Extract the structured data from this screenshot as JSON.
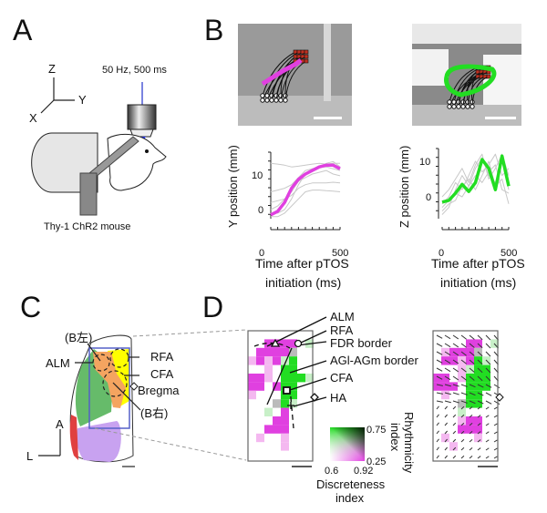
{
  "panels": {
    "A": {
      "letter": "A",
      "stim_label": "50 Hz, 500 ms",
      "axes": {
        "z": "Z",
        "y": "Y",
        "x": "X"
      },
      "caption": "Thy-1 ChR2 mouse"
    },
    "B": {
      "letter": "B",
      "left_plot": {
        "ylabel": "Y position (mm)",
        "xlabel_1": "Time after pTOS",
        "xlabel_2": "initiation (ms)",
        "xtick_0": "0",
        "xtick_500": "500",
        "ytick_0": "0",
        "ytick_10": "10"
      },
      "right_plot": {
        "ylabel": "Z position (mm)",
        "xlabel_1": "Time after pTOS",
        "xlabel_2": "initiation (ms)",
        "xtick_0": "0",
        "xtick_500": "500",
        "ytick_0": "0",
        "ytick_10": "10"
      }
    },
    "C": {
      "letter": "C",
      "labels": {
        "b_left": "(B左)",
        "alm": "ALM",
        "rfa": "RFA",
        "cfa": "CFA",
        "bregma": "Bregma",
        "b_right": "(B右)",
        "a": "A",
        "l": "L"
      },
      "region_colors": {
        "alm": "#f4a460",
        "rfa": "#ffff00",
        "m1": "#66bb6a",
        "s1": "#c8a2f0",
        "red": "#e04040",
        "box": "#5560c8"
      }
    },
    "D": {
      "letter": "D",
      "labels": {
        "alm": "ALM",
        "rfa": "RFA",
        "fdr": "FDR border",
        "agl": "AGl-AGm border",
        "cfa": "CFA",
        "ha": "HA"
      },
      "colorbar": {
        "rhythm_label_1": "Rhythmicity",
        "rhythm_label_2": "index",
        "r_max": "0.75",
        "r_min": "0.25",
        "d_min": "0.6",
        "d_max": "0.92",
        "disc_label_1": "Discreteness",
        "disc_label_2": "index"
      },
      "cell_colors": {
        "m": "#e040e0",
        "p": "#f4b8f0",
        "g": "#22dd22",
        "l": "#c8f0c8",
        "x": "#bbbbbb"
      },
      "left_map": [
        "........",
        "..mmmm.l",
        ".mmmmx..",
        "pmpmlg..",
        "..p.gg..",
        "mmp.gggl",
        "mm.mgg..",
        "p...gg..",
        "...xgl..",
        "..l.m...",
        "...mm...",
        "..mmm...",
        ".p..p...",
        "....p...",
        "........"
      ],
      "right_map": [
        "........",
        "....mm.l",
        ".pmmmx..",
        ".mmpmgl.",
        "...plgg.",
        "mm.pggg.",
        "mmm.ggg.",
        ".p..gg..",
        "...xgg..",
        "...l....",
        "...pmm..",
        "...mmm..",
        ".p...p..",
        "..p.....",
        "........"
      ]
    }
  },
  "chart_data": [
    {
      "type": "line",
      "title": "",
      "xlabel": "Time after pTOS initiation (ms)",
      "ylabel": "Y position (mm)",
      "xlim": [
        0,
        500
      ],
      "ylim": [
        -3,
        15
      ],
      "x": [
        0,
        50,
        100,
        150,
        200,
        250,
        300,
        350,
        400,
        450,
        500
      ],
      "series": [
        {
          "name": "mean",
          "color": "#e040e0",
          "values": [
            -1.5,
            -0.5,
            2,
            6,
            8.5,
            10,
            11,
            12,
            12.5,
            12.5,
            11.5
          ]
        },
        {
          "name": "trial-1",
          "color": "#c8c8c8",
          "values": [
            13,
            12.8,
            12.5,
            12,
            12.2,
            12.5,
            12.8,
            13,
            12.8,
            13,
            13
          ]
        },
        {
          "name": "trial-2",
          "color": "#c8c8c8",
          "values": [
            5,
            5.5,
            6,
            7,
            9,
            11,
            11.5,
            12,
            12,
            11.5,
            11
          ]
        },
        {
          "name": "trial-3",
          "color": "#c8c8c8",
          "values": [
            -2,
            -2,
            -1,
            1,
            3,
            5,
            5.5,
            5.5,
            5.3,
            5.2,
            5
          ]
        },
        {
          "name": "trial-4",
          "color": "#c8c8c8",
          "values": [
            2,
            2.5,
            3,
            4,
            6,
            7,
            7.5,
            7.5,
            7.5,
            7.7,
            7.5
          ]
        },
        {
          "name": "trial-5",
          "color": "#c8c8c8",
          "values": [
            -1,
            -1,
            0,
            3,
            7,
            10,
            11.5,
            12,
            13,
            13.5,
            12
          ]
        },
        {
          "name": "trial-6",
          "color": "#c8c8c8",
          "values": [
            0,
            1,
            3,
            5,
            8,
            9,
            10,
            10.5,
            11,
            10,
            9.5
          ]
        }
      ]
    },
    {
      "type": "line",
      "title": "",
      "xlabel": "Time after pTOS initiation (ms)",
      "ylabel": "Z position (mm)",
      "xlim": [
        0,
        500
      ],
      "ylim": [
        -6,
        14
      ],
      "x": [
        0,
        50,
        100,
        150,
        200,
        250,
        300,
        350,
        400,
        450,
        500
      ],
      "series": [
        {
          "name": "mean",
          "color": "#22dd22",
          "values": [
            -1.5,
            -1,
            1,
            3.5,
            1.5,
            4,
            10.5,
            8,
            2,
            11.5,
            3
          ]
        },
        {
          "name": "trial-1",
          "color": "#c8c8c8",
          "values": [
            -5,
            -3,
            2,
            6,
            3,
            8,
            11,
            6,
            4,
            10,
            2
          ]
        },
        {
          "name": "trial-2",
          "color": "#c8c8c8",
          "values": [
            -2,
            0,
            4,
            2,
            6,
            10,
            7,
            9,
            12,
            6,
            8
          ]
        },
        {
          "name": "trial-3",
          "color": "#c8c8c8",
          "values": [
            -4,
            -2,
            -1,
            3,
            5,
            2,
            6,
            10,
            3,
            5,
            -2
          ]
        },
        {
          "name": "trial-4",
          "color": "#c8c8c8",
          "values": [
            0,
            2,
            5,
            8,
            4,
            9,
            12,
            5,
            8,
            12,
            6
          ]
        },
        {
          "name": "trial-5",
          "color": "#c8c8c8",
          "values": [
            -3,
            -1,
            1,
            0,
            3,
            6,
            4,
            7,
            9,
            2,
            1
          ]
        }
      ]
    }
  ]
}
